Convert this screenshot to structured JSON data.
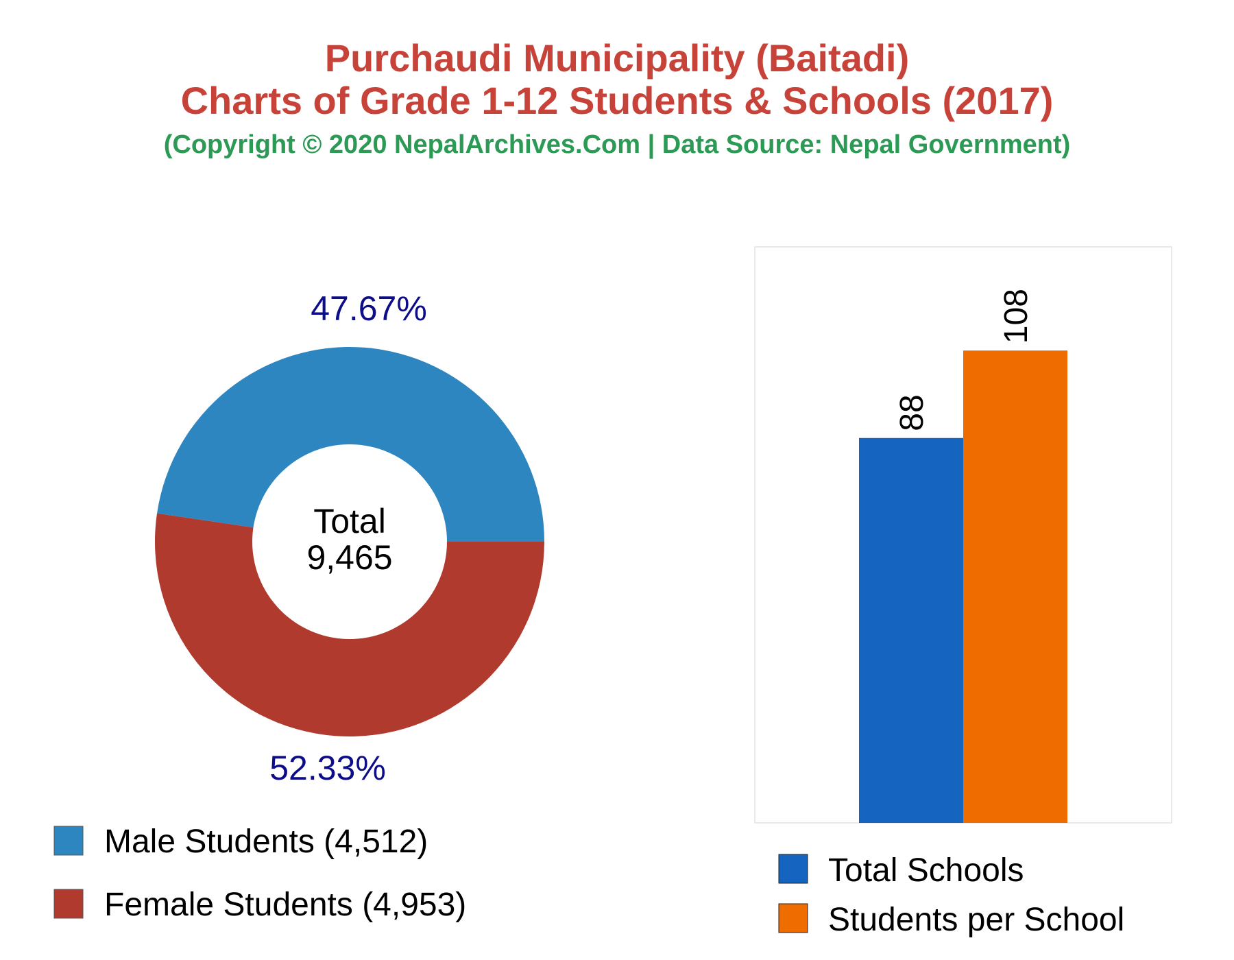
{
  "header": {
    "title_line1": "Purchaudi Municipality (Baitadi)",
    "title_line2": "Charts of Grade 1-12 Students & Schools (2017)",
    "subtitle": "(Copyright © 2020 NepalArchives.Com | Data Source: Nepal Government)"
  },
  "chart_data": [
    {
      "type": "pie",
      "variant": "donut",
      "center_label": "Total",
      "center_value": "9,465",
      "slices": [
        {
          "name": "Male Students",
          "value": 4512,
          "percent": 47.67,
          "percent_label": "47.67%",
          "legend": "Male Students (4,512)",
          "color": "#2e86c1"
        },
        {
          "name": "Female Students",
          "value": 4953,
          "percent": 52.33,
          "percent_label": "52.33%",
          "legend": "Female Students (4,953)",
          "color": "#b03a2e"
        }
      ]
    },
    {
      "type": "bar",
      "categories": [
        "Total Schools",
        "Students per School"
      ],
      "values": [
        88,
        108
      ],
      "value_labels": [
        "88",
        "108"
      ],
      "colors": [
        "#1565c0",
        "#ef6c00"
      ],
      "legend": [
        "Total Schools",
        "Students per School"
      ],
      "legend_placement": "bottom",
      "grid": false
    }
  ]
}
